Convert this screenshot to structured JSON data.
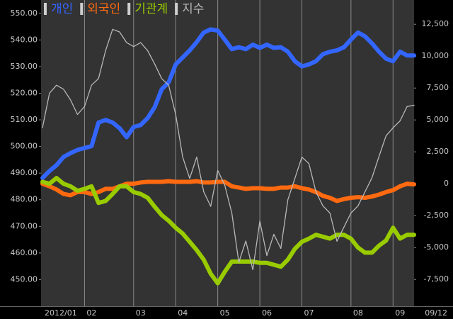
{
  "chart_data": {
    "type": "line",
    "series": [
      {
        "name": "개인",
        "color": "#3366ff",
        "axis": "y2",
        "width": 6,
        "values": [
          450,
          1000,
          1450,
          2100,
          2400,
          2650,
          2800,
          2950,
          4800,
          5000,
          4800,
          4350,
          3650,
          4450,
          4600,
          5150,
          6000,
          7400,
          7950,
          9350,
          9900,
          10450,
          11100,
          11850,
          12100,
          12000,
          11300,
          10550,
          10700,
          10550,
          10900,
          10650,
          10900,
          10650,
          10700,
          10350,
          9600,
          9200,
          9350,
          9600,
          10150,
          10350,
          10450,
          10700,
          11300,
          11850,
          11550,
          11000,
          10350,
          9800,
          9600,
          10350,
          10050,
          10050
        ]
      },
      {
        "name": "외국인",
        "color": "#ff6a10",
        "axis": "y2",
        "width": 6,
        "values": [
          0,
          -200,
          -450,
          -800,
          -900,
          -650,
          -650,
          -800,
          -650,
          -400,
          -400,
          -200,
          0,
          0,
          100,
          150,
          150,
          150,
          200,
          150,
          150,
          150,
          200,
          100,
          100,
          150,
          150,
          -200,
          -300,
          -400,
          -350,
          -350,
          -400,
          -400,
          -300,
          -300,
          -200,
          -350,
          -450,
          -650,
          -950,
          -1100,
          -1350,
          -1200,
          -1100,
          -1050,
          -1100,
          -1000,
          -850,
          -650,
          -500,
          -200,
          0,
          -50
        ]
      },
      {
        "name": "기관계",
        "color": "#99cc00",
        "axis": "y2",
        "width": 6,
        "values": [
          150,
          0,
          450,
          0,
          -200,
          -550,
          -400,
          -200,
          -1500,
          -1350,
          -800,
          -200,
          -200,
          -650,
          -800,
          -1100,
          -1800,
          -2450,
          -2900,
          -3450,
          -3900,
          -4550,
          -5200,
          -5950,
          -7050,
          -7800,
          -6900,
          -6100,
          -6100,
          -6100,
          -6100,
          -6200,
          -6200,
          -6350,
          -6500,
          -5950,
          -5100,
          -4550,
          -4300,
          -4000,
          -4150,
          -4300,
          -4000,
          -4000,
          -4300,
          -5000,
          -5400,
          -5400,
          -4850,
          -4450,
          -3450,
          -4300,
          -4000,
          -4000
        ]
      },
      {
        "name": "지수",
        "color": "#b8b8b8",
        "axis": "y",
        "width": 1.3,
        "values": [
          507,
          520,
          523,
          521.5,
          517.5,
          512,
          515,
          523,
          525.5,
          536,
          544,
          543,
          539,
          537.5,
          539,
          536,
          531,
          525.5,
          523,
          512,
          496,
          488,
          496,
          483,
          477.5,
          491,
          485.5,
          475,
          456.5,
          464.5,
          453.7,
          472,
          459,
          467,
          461.7,
          480,
          488,
          496,
          493.6,
          483,
          477.7,
          475,
          464.4,
          469.7,
          475,
          477.7,
          483,
          488.3,
          496.3,
          504,
          507,
          509.6,
          515,
          515.5
        ]
      }
    ],
    "categories": [
      "2012/01",
      null,
      null,
      null,
      null,
      null,
      "02",
      null,
      null,
      null,
      null,
      null,
      null,
      "03",
      null,
      null,
      null,
      null,
      null,
      "04",
      null,
      null,
      null,
      null,
      null,
      "05",
      null,
      null,
      null,
      null,
      null,
      "06",
      null,
      null,
      null,
      null,
      null,
      "07",
      null,
      null,
      null,
      null,
      null,
      null,
      "08",
      null,
      null,
      null,
      null,
      null,
      "09",
      null,
      null,
      null
    ],
    "end_date": "09/12",
    "ylim": [
      440,
      555
    ],
    "yticks": [
      {
        "value": 450,
        "label": "450.00"
      },
      {
        "value": 460,
        "label": "460.00"
      },
      {
        "value": 470,
        "label": "470.00"
      },
      {
        "value": 480,
        "label": "480.00"
      },
      {
        "value": 490,
        "label": "490.00"
      },
      {
        "value": 500,
        "label": "500.00"
      },
      {
        "value": 510,
        "label": "510.00"
      },
      {
        "value": 520,
        "label": "520.00"
      },
      {
        "value": 530,
        "label": "530.00"
      },
      {
        "value": 540,
        "label": "540.00"
      },
      {
        "value": 550,
        "label": "550.00"
      }
    ],
    "y2lim": [
      -9600,
      14400
    ],
    "y2ticks": [
      {
        "value": -7500,
        "label": "-7,500"
      },
      {
        "value": -5000,
        "label": "-5,000"
      },
      {
        "value": -2500,
        "label": "-2,500"
      },
      0,
      {
        "value": 2500,
        "label": "2,500"
      },
      {
        "value": 5000,
        "label": "5,000"
      },
      {
        "value": 7500,
        "label": "7,500"
      },
      {
        "value": 10000,
        "label": "10,000"
      },
      {
        "value": 12500,
        "label": "12,500"
      }
    ],
    "grid": "x"
  }
}
